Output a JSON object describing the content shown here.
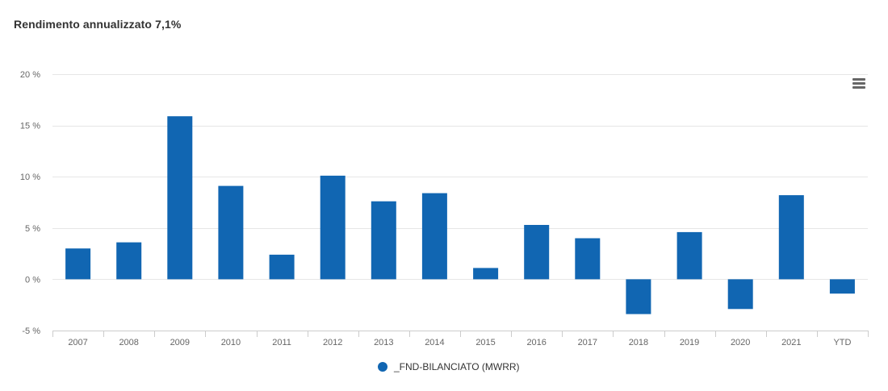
{
  "title": "Rendimento annualizzato 7,1%",
  "menu": {
    "icon": "hamburger-menu-icon"
  },
  "colors": {
    "series": "#1166b2",
    "grid": "#e6e6e6",
    "axis_text": "#666666",
    "axis_line": "#cccccc"
  },
  "chart_data": {
    "type": "bar",
    "categories": [
      "2007",
      "2008",
      "2009",
      "2010",
      "2011",
      "2012",
      "2013",
      "2014",
      "2015",
      "2016",
      "2017",
      "2018",
      "2019",
      "2020",
      "2021",
      "YTD"
    ],
    "series": [
      {
        "name": "_FND-BILANCIATO (MWRR)",
        "values": [
          3.0,
          3.6,
          15.9,
          9.1,
          2.4,
          10.1,
          7.6,
          8.4,
          1.1,
          5.3,
          4.0,
          -3.4,
          4.6,
          -2.9,
          8.2,
          -1.4
        ]
      }
    ],
    "ylim": [
      -5,
      20
    ],
    "yticks": [
      20,
      15,
      10,
      5,
      0,
      -5
    ],
    "ytick_labels": [
      "20 %",
      "15 %",
      "10 %",
      "5 %",
      "0 %",
      "-5 %"
    ],
    "grid": true,
    "legend": "bottom-center"
  }
}
